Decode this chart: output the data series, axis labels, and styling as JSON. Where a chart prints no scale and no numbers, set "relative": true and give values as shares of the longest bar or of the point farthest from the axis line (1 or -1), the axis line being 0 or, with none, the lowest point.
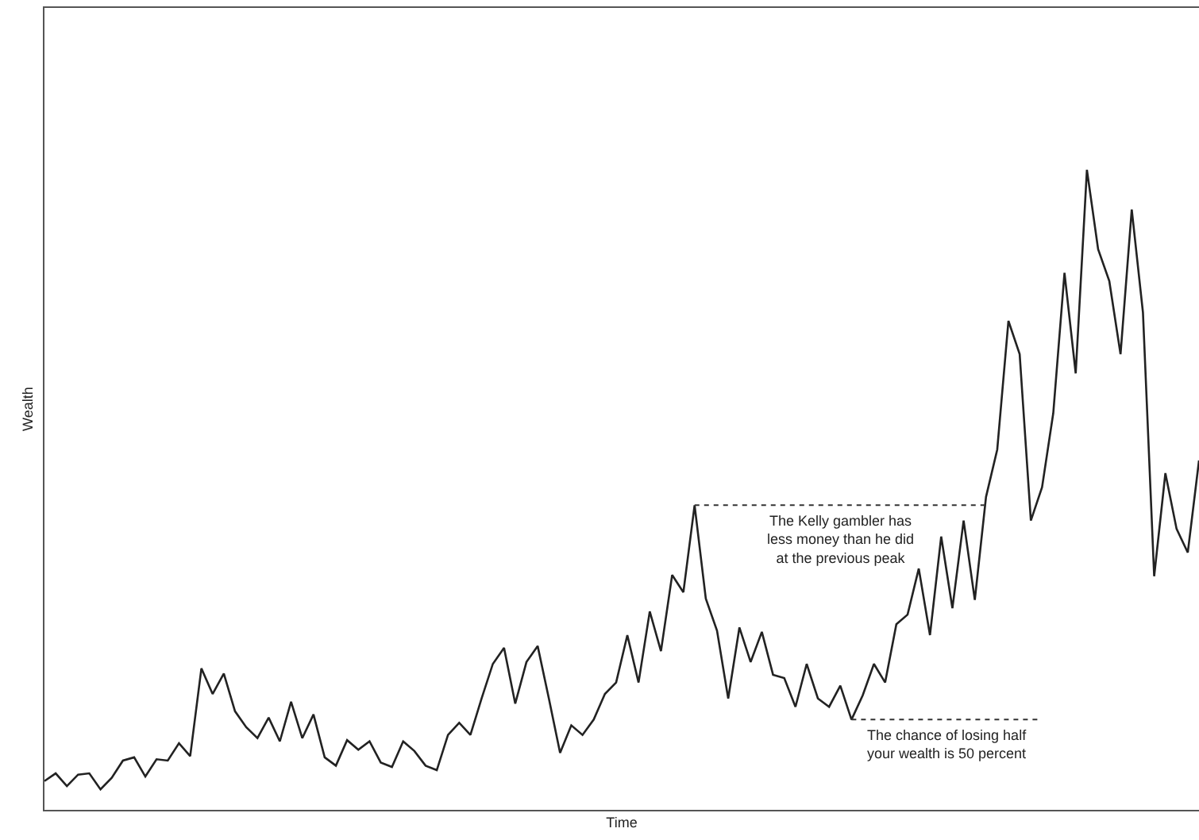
{
  "chart_data": {
    "type": "line",
    "relative": true,
    "xlabel": "Time",
    "ylabel": "Wealth",
    "categories": [
      null,
      null,
      null,
      null,
      null,
      null,
      null,
      null,
      null,
      null,
      null,
      null,
      null,
      null,
      null,
      null,
      null,
      null,
      null,
      null,
      null,
      null,
      null,
      null,
      null,
      null,
      null,
      null,
      null,
      null,
      null,
      null,
      null,
      null,
      null,
      null,
      null,
      null,
      null,
      null,
      null,
      null,
      null,
      null,
      null,
      null,
      null,
      null,
      null,
      null,
      null,
      null,
      null,
      null,
      null,
      null,
      null,
      null,
      null,
      null,
      null,
      null,
      null,
      null,
      null,
      null,
      null,
      null,
      null,
      null,
      null,
      null,
      null,
      null,
      null,
      null,
      null,
      null,
      null,
      null,
      null,
      null,
      null,
      null,
      null,
      null,
      null,
      null,
      null,
      null,
      null,
      null,
      null,
      null,
      null,
      null,
      null,
      null,
      null,
      null,
      null,
      null,
      null,
      null
    ],
    "series": [
      {
        "color": "#222222",
        "values": [
          0.045,
          0.057,
          0.037,
          0.055,
          0.057,
          0.032,
          0.05,
          0.077,
          0.082,
          0.052,
          0.079,
          0.077,
          0.104,
          0.084,
          0.221,
          0.181,
          0.213,
          0.154,
          0.129,
          0.112,
          0.144,
          0.107,
          0.169,
          0.112,
          0.149,
          0.082,
          0.069,
          0.109,
          0.094,
          0.107,
          0.074,
          0.067,
          0.107,
          0.092,
          0.069,
          0.062,
          0.117,
          0.136,
          0.117,
          0.174,
          0.228,
          0.253,
          0.166,
          0.231,
          0.256,
          0.174,
          0.089,
          0.132,
          0.117,
          0.141,
          0.181,
          0.199,
          0.273,
          0.199,
          0.31,
          0.248,
          0.367,
          0.34,
          0.476,
          0.33,
          0.28,
          0.174,
          0.285,
          0.231,
          0.278,
          0.211,
          0.206,
          0.161,
          0.228,
          0.174,
          0.161,
          0.194,
          0.141,
          0.179,
          0.228,
          0.199,
          0.29,
          0.305,
          0.377,
          0.273,
          0.427,
          0.315,
          0.452,
          0.328,
          0.489,
          0.563,
          0.764,
          0.712,
          0.452,
          0.504,
          0.62,
          0.839,
          0.682,
          1,
          0.876,
          0.826,
          0.712,
          0.938,
          0.777,
          0.365,
          0.526,
          0.439,
          0.402,
          0.546
        ]
      }
    ],
    "ref_lines": [
      {
        "axis": "y",
        "value": 0.476,
        "label": "The Kelly gambler has less money than he did at the previous peak",
        "line_style": "dotted",
        "color": "#333333"
      },
      {
        "axis": "y",
        "value": 0.141,
        "label": "The chance of losing half your wealth is 50 percent",
        "line_style": "dotted",
        "color": "#333333"
      }
    ]
  }
}
